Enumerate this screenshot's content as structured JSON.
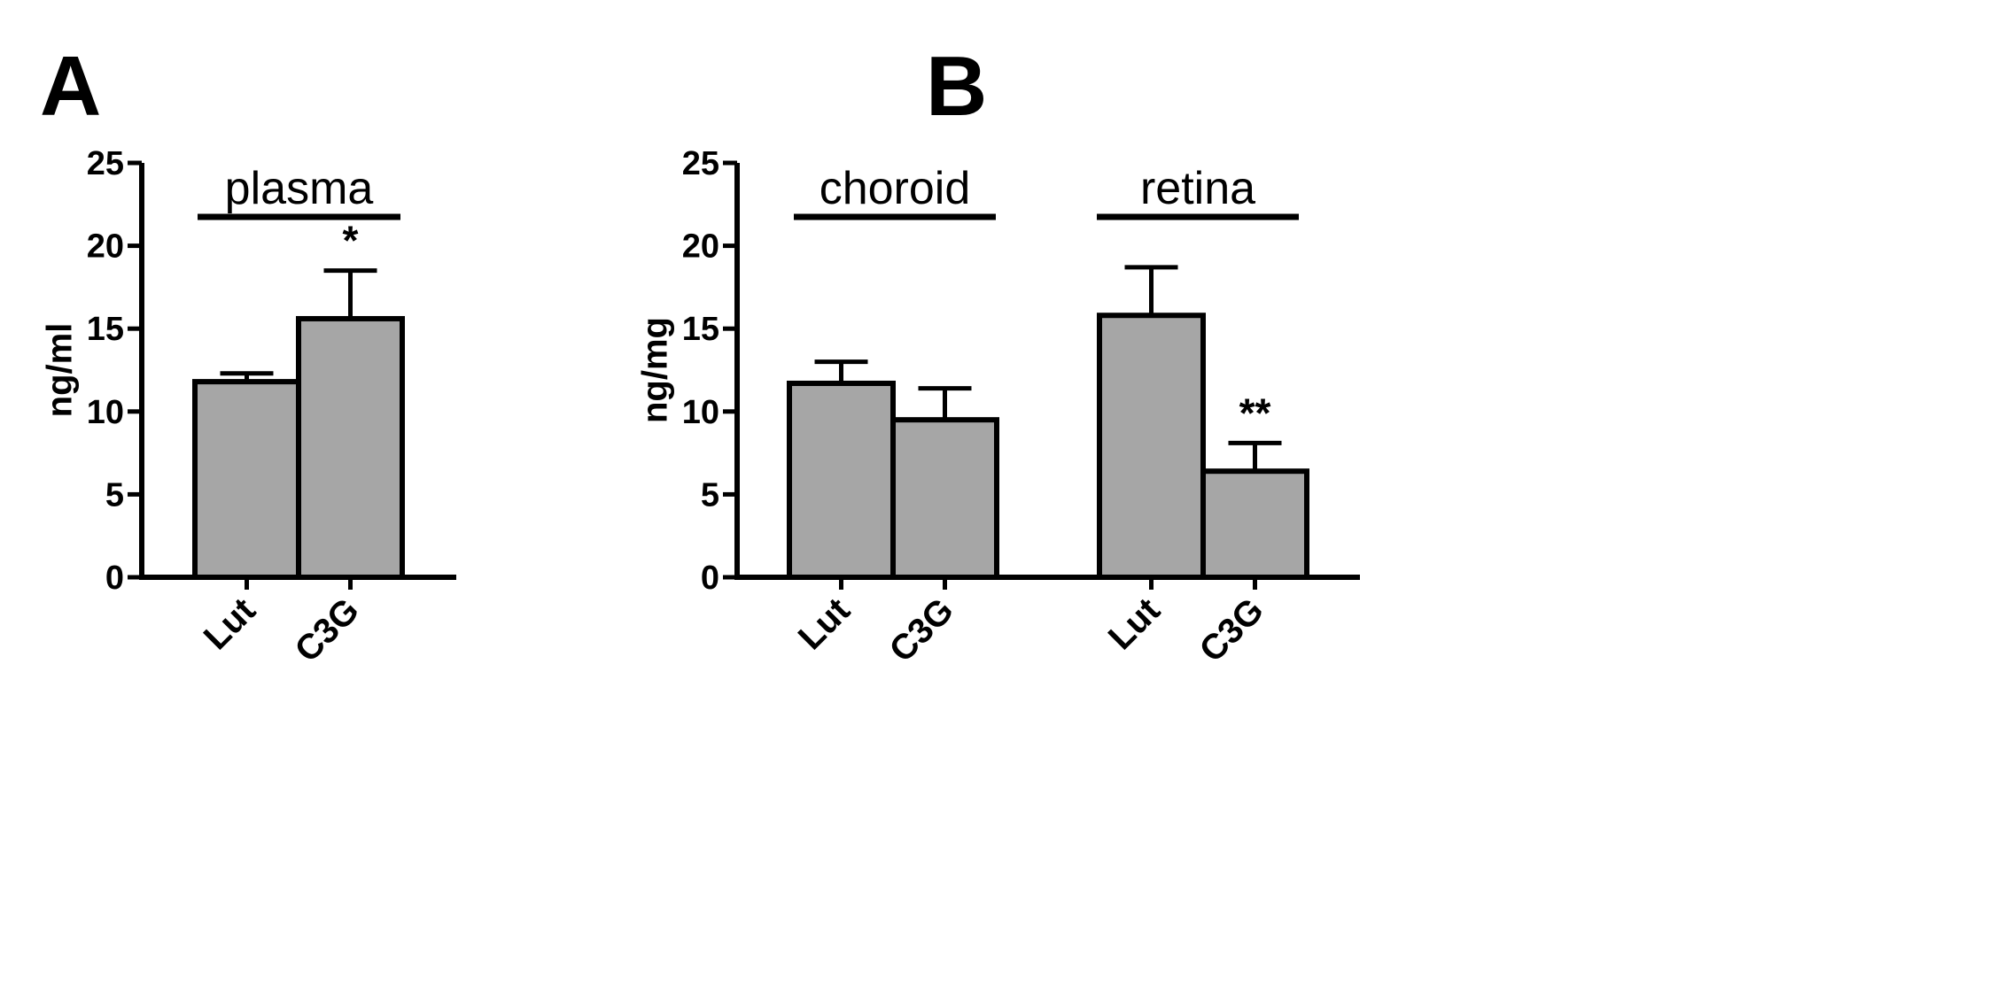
{
  "chart_data": [
    {
      "panel": "A",
      "type": "bar",
      "ylabel": "ng/ml",
      "ylim": [
        0,
        25
      ],
      "yticks": [
        0,
        5,
        10,
        15,
        20,
        25
      ],
      "groups": [
        {
          "label": "plasma",
          "categories": [
            "Lut",
            "C3G"
          ],
          "values": [
            11.8,
            15.6
          ],
          "errors": [
            0.5,
            2.9
          ],
          "significance": [
            "",
            "*"
          ]
        }
      ]
    },
    {
      "panel": "B",
      "type": "bar",
      "ylabel": "ng/mg",
      "ylim": [
        0,
        25
      ],
      "yticks": [
        0,
        5,
        10,
        15,
        20,
        25
      ],
      "groups": [
        {
          "label": "choroid",
          "categories": [
            "Lut",
            "C3G"
          ],
          "values": [
            11.7,
            9.5
          ],
          "errors": [
            1.3,
            1.9
          ],
          "significance": [
            "",
            ""
          ]
        },
        {
          "label": "retina",
          "categories": [
            "Lut",
            "C3G"
          ],
          "values": [
            15.8,
            6.4
          ],
          "errors": [
            2.9,
            1.7
          ],
          "significance": [
            "",
            "**"
          ]
        }
      ]
    }
  ],
  "style": {
    "bar_fill": "#a6a6a6",
    "stroke": "#000000"
  }
}
